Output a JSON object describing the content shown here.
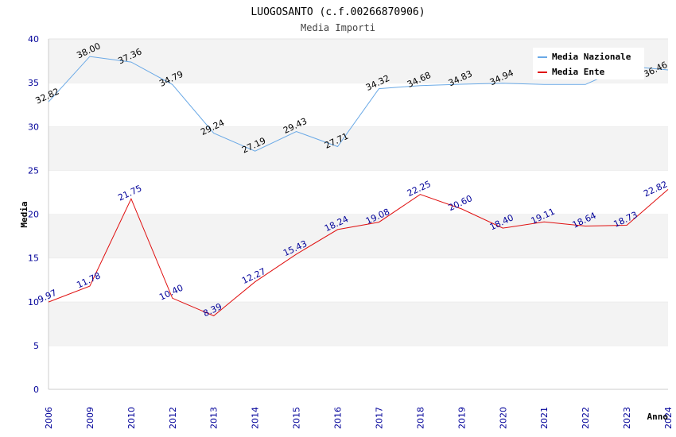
{
  "chart_data": {
    "type": "line",
    "title": "LUOGOSANTO (c.f.00266870906)",
    "subtitle": "Media Importi",
    "xlabel": "Anno",
    "ylabel": "Media",
    "ylim": [
      0,
      40
    ],
    "yticks": [
      "0",
      "5",
      "10",
      "15",
      "20",
      "25",
      "30",
      "35",
      "40"
    ],
    "categories": [
      "2006",
      "2009",
      "2010",
      "2012",
      "2013",
      "2014",
      "2015",
      "2016",
      "2017",
      "2018",
      "2019",
      "2020",
      "2021",
      "2022",
      "2023",
      "2024"
    ],
    "grid": "horizontal alternating bands",
    "legend_position": "top-right",
    "series": [
      {
        "name": "Media Nazionale",
        "color": "#6aa9e6",
        "values": [
          32.82,
          38.0,
          37.36,
          34.79,
          29.24,
          27.19,
          29.43,
          27.71,
          34.32,
          34.68,
          34.83,
          34.94,
          34.8,
          34.8,
          36.9,
          36.46
        ],
        "labels": [
          "32.82",
          "38.00",
          "37.36",
          "34.79",
          "29.24",
          "27.19",
          "29.43",
          "27.71",
          "34.32",
          "34.68",
          "34.83",
          "34.94",
          "",
          "",
          "",
          "36.46"
        ]
      },
      {
        "name": "Media Ente",
        "color": "#e01010",
        "values": [
          9.97,
          11.78,
          21.75,
          10.4,
          8.39,
          12.27,
          15.43,
          18.24,
          19.08,
          22.25,
          20.6,
          18.4,
          19.11,
          18.64,
          18.73,
          22.82
        ],
        "labels": [
          "9.97",
          "11.78",
          "21.75",
          "10.40",
          "8.39",
          "12.27",
          "15.43",
          "18.24",
          "19.08",
          "22.25",
          "20.60",
          "18.40",
          "19.11",
          "18.64",
          "18.73",
          "22.82"
        ]
      }
    ]
  }
}
